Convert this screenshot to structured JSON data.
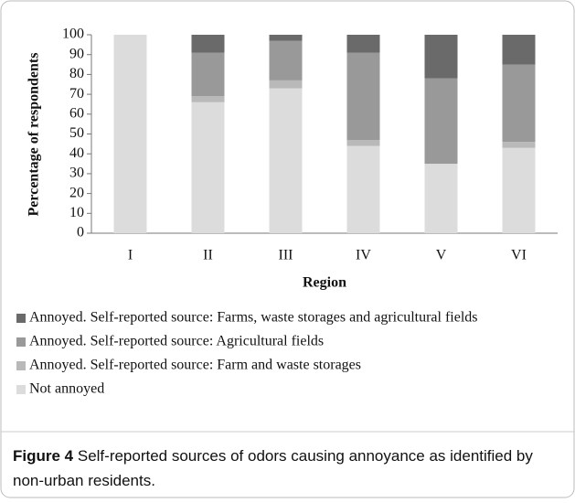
{
  "chart_data": {
    "type": "stacked-bar",
    "y_label": "Percentage of respondents",
    "x_label": "Region",
    "categories": [
      "I",
      "II",
      "III",
      "IV",
      "V",
      "VI"
    ],
    "series": [
      {
        "name": "Not annoyed",
        "color": "#dcdcdc",
        "values": [
          100,
          66,
          73,
          44,
          35,
          43
        ]
      },
      {
        "name": "Annoyed. Self-reported source: Farm and waste storages",
        "color": "#b9b9b9",
        "values": [
          0,
          3,
          4,
          3,
          0,
          3
        ]
      },
      {
        "name": "Annoyed. Self-reported source: Agricultural fields",
        "color": "#999999",
        "values": [
          0,
          22,
          20,
          44,
          43,
          39
        ]
      },
      {
        "name": "Annoyed. Self-reported source: Farms, waste storages and agricultural fields",
        "color": "#6a6a6a",
        "values": [
          0,
          9,
          3,
          9,
          22,
          15
        ]
      }
    ],
    "ylim": [
      0,
      100
    ],
    "yticks": [
      0,
      10,
      20,
      30,
      40,
      50,
      60,
      70,
      80,
      90,
      100
    ],
    "caption": {
      "label": "Figure 4",
      "text": "Self-reported sources of odors causing annoyance as identified by non-urban residents."
    }
  }
}
